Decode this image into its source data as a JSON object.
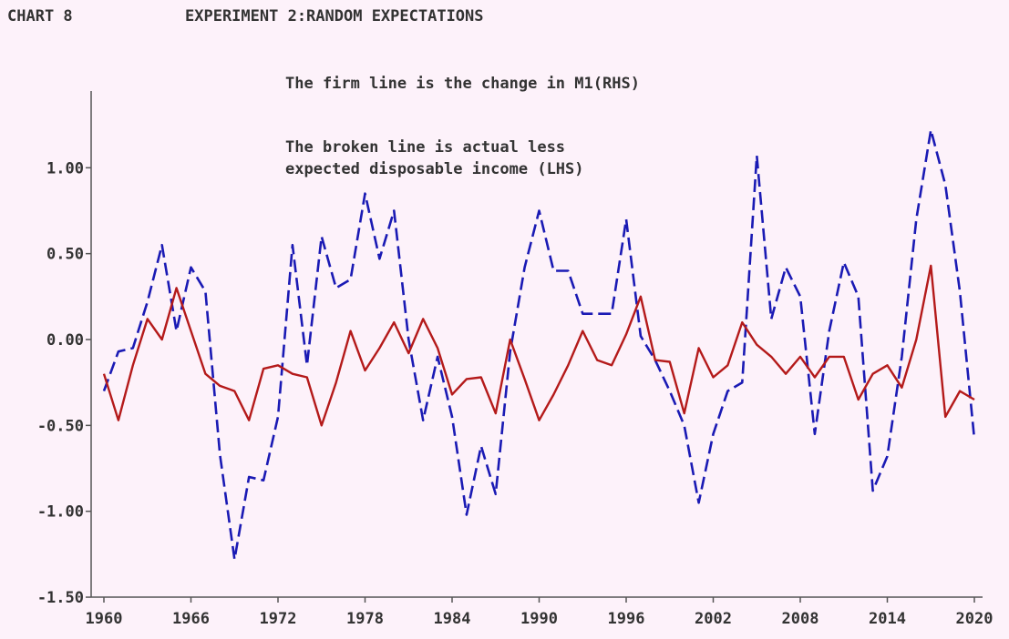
{
  "header": {
    "chart_number": "CHART 8",
    "title": "EXPERIMENT 2:RANDOM EXPECTATIONS"
  },
  "annotations": {
    "firm_line_note": "The firm line is the change in M1(RHS)",
    "broken_line_note_1": "The broken line is actual less",
    "broken_line_note_2": "expected disposable income (LHS)"
  },
  "colors": {
    "background": "#fdf2fa",
    "broken_line": "#1a1ab4",
    "firm_line": "#b41a1a",
    "axis": "#555555"
  },
  "chart_data": {
    "type": "line",
    "title": "EXPERIMENT 2:RANDOM EXPECTATIONS",
    "xlabel": "",
    "ylabel": "",
    "xlim": [
      1960,
      2021
    ],
    "ylim": [
      -1.5,
      1.5
    ],
    "x_ticks": [
      1960,
      1966,
      1972,
      1978,
      1984,
      1990,
      1996,
      2002,
      2008,
      2014,
      2020
    ],
    "y_ticks": [
      -1.5,
      -1.0,
      -0.5,
      0.0,
      0.5,
      1.0
    ],
    "y_tick_labels": [
      "-1.50",
      "-1.00",
      "-0.50",
      "0.00",
      "0.50",
      "1.00"
    ],
    "grid": false,
    "series": [
      {
        "name": "actual less expected disposable income (LHS)",
        "style": "dashed",
        "color": "#1a1ab4",
        "x": [
          1960,
          1961,
          1962,
          1963,
          1964,
          1965,
          1966,
          1967,
          1968,
          1969,
          1970,
          1971,
          1972,
          1973,
          1974,
          1975,
          1976,
          1977,
          1978,
          1979,
          1980,
          1981,
          1982,
          1983,
          1984,
          1985,
          1986,
          1987,
          1988,
          1989,
          1990,
          1991,
          1992,
          1993,
          1994,
          1995,
          1996,
          1997,
          1998,
          1999,
          2000,
          2001,
          2002,
          2003,
          2004,
          2005,
          2006,
          2007,
          2008,
          2009,
          2010,
          2011,
          2012,
          2013,
          2014,
          2015,
          2016,
          2017,
          2018,
          2019,
          2020
        ],
        "y": [
          -0.3,
          -0.07,
          -0.05,
          0.22,
          0.55,
          0.05,
          0.42,
          0.28,
          -0.67,
          -1.28,
          -0.8,
          -0.82,
          -0.45,
          0.55,
          -0.15,
          0.6,
          0.3,
          0.35,
          0.85,
          0.47,
          0.75,
          0.0,
          -0.47,
          -0.1,
          -0.45,
          -1.02,
          -0.62,
          -0.9,
          -0.07,
          0.42,
          0.75,
          0.4,
          0.4,
          0.15,
          0.15,
          0.15,
          0.7,
          0.02,
          -0.12,
          -0.3,
          -0.5,
          -0.95,
          -0.55,
          -0.3,
          -0.25,
          1.07,
          0.12,
          0.42,
          0.25,
          -0.55,
          0.05,
          0.45,
          0.25,
          -0.88,
          -0.68,
          -0.1,
          0.7,
          1.22,
          0.9,
          0.28,
          -0.58
        ]
      },
      {
        "name": "change in M1 (RHS)",
        "style": "solid",
        "color": "#b41a1a",
        "x": [
          1960,
          1961,
          1962,
          1963,
          1964,
          1965,
          1966,
          1967,
          1968,
          1969,
          1970,
          1971,
          1972,
          1973,
          1974,
          1975,
          1976,
          1977,
          1978,
          1979,
          1980,
          1981,
          1982,
          1983,
          1984,
          1985,
          1986,
          1987,
          1988,
          1989,
          1990,
          1991,
          1992,
          1993,
          1994,
          1995,
          1996,
          1997,
          1998,
          1999,
          2000,
          2001,
          2002,
          2003,
          2004,
          2005,
          2006,
          2007,
          2008,
          2009,
          2010,
          2011,
          2012,
          2013,
          2014,
          2015,
          2016,
          2017,
          2018,
          2019,
          2020
        ],
        "y": [
          -0.2,
          -0.47,
          -0.15,
          0.12,
          0.0,
          0.3,
          0.05,
          -0.2,
          -0.27,
          -0.3,
          -0.47,
          -0.17,
          -0.15,
          -0.2,
          -0.22,
          -0.5,
          -0.25,
          0.05,
          -0.18,
          -0.05,
          0.1,
          -0.08,
          0.12,
          -0.05,
          -0.32,
          -0.23,
          -0.22,
          -0.43,
          0.0,
          -0.23,
          -0.47,
          -0.32,
          -0.15,
          0.05,
          -0.12,
          -0.15,
          0.03,
          0.25,
          -0.12,
          -0.13,
          -0.43,
          -0.05,
          -0.22,
          -0.15,
          0.1,
          -0.03,
          -0.1,
          -0.2,
          -0.1,
          -0.22,
          -0.1,
          -0.1,
          -0.35,
          -0.2,
          -0.15,
          -0.28,
          0.0,
          0.43,
          -0.45,
          -0.3,
          -0.35
        ]
      }
    ]
  }
}
